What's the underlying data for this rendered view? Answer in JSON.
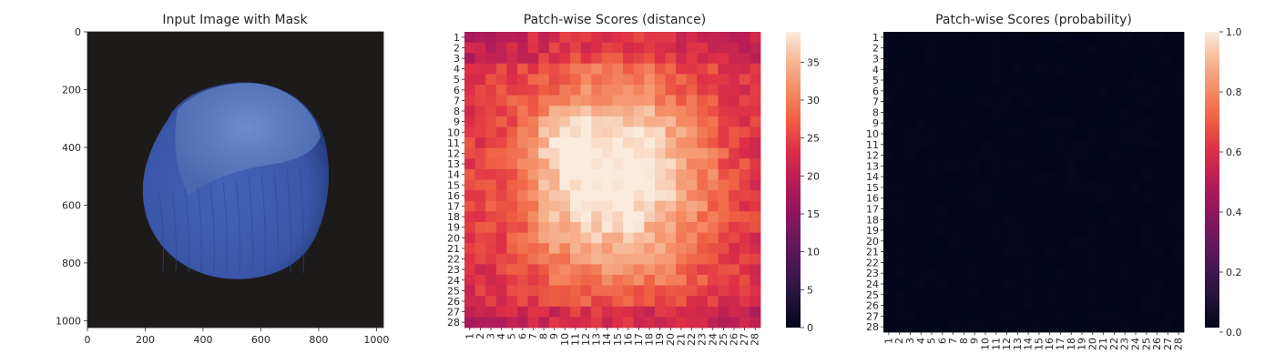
{
  "chart_data": [
    {
      "type": "image",
      "title": "Input Image with Mask",
      "x_ticks": [
        "0",
        "200",
        "400",
        "600",
        "800",
        "1000"
      ],
      "y_ticks": [
        "0",
        "200",
        "400",
        "600",
        "800",
        "1000"
      ],
      "x_tick_values": [
        0,
        200,
        400,
        600,
        800,
        1000
      ],
      "y_tick_values": [
        0,
        200,
        400,
        600,
        800,
        1000
      ],
      "xlim": [
        0,
        1024
      ],
      "ylim": [
        0,
        1024
      ],
      "colors": {
        "background": "#1d1a1a",
        "nut_body": "#3a56a8",
        "nut_cap": "#5a7ac0",
        "nut_shadow": "#2a3f80"
      }
    },
    {
      "type": "heatmap",
      "title": "Patch-wise Scores (distance)",
      "x_labels": [
        "1",
        "2",
        "3",
        "4",
        "5",
        "6",
        "7",
        "8",
        "9",
        "10",
        "11",
        "12",
        "13",
        "14",
        "15",
        "16",
        "17",
        "18",
        "19",
        "20",
        "21",
        "22",
        "23",
        "24",
        "25",
        "26",
        "27",
        "28"
      ],
      "y_labels": [
        "1",
        "2",
        "3",
        "4",
        "5",
        "6",
        "7",
        "8",
        "9",
        "10",
        "11",
        "12",
        "13",
        "14",
        "15",
        "16",
        "17",
        "18",
        "19",
        "20",
        "21",
        "22",
        "23",
        "24",
        "25",
        "26",
        "27",
        "28"
      ],
      "grid_size": 28,
      "vmin": 0,
      "vmax": 39,
      "colorbar_ticks": [
        "0",
        "5",
        "10",
        "15",
        "20",
        "25",
        "30",
        "35"
      ],
      "colorbar_tick_values": [
        0,
        5,
        10,
        15,
        20,
        25,
        30,
        35
      ],
      "colormap": "rocket",
      "field": {
        "background": 22,
        "center_x": 14.5,
        "center_y": 14.0,
        "sigma_x": 7.0,
        "sigma_y": 8.0,
        "amplitude": 15,
        "peak_row": 11,
        "peak_col": 10
      }
    },
    {
      "type": "heatmap",
      "title": "Patch-wise Scores (probability)",
      "x_labels": [
        "1",
        "2",
        "3",
        "4",
        "5",
        "6",
        "7",
        "8",
        "9",
        "10",
        "11",
        "12",
        "13",
        "14",
        "15",
        "16",
        "17",
        "18",
        "19",
        "20",
        "21",
        "22",
        "23",
        "24",
        "25",
        "26",
        "27",
        "28"
      ],
      "y_labels": [
        "1",
        "2",
        "3",
        "4",
        "5",
        "6",
        "7",
        "8",
        "9",
        "10",
        "11",
        "12",
        "13",
        "14",
        "15",
        "16",
        "17",
        "18",
        "19",
        "20",
        "21",
        "22",
        "23",
        "24",
        "25",
        "26",
        "27",
        "28"
      ],
      "grid_size": 28,
      "vmin": 0.0,
      "vmax": 1.0,
      "colorbar_ticks": [
        "0.0",
        "0.2",
        "0.4",
        "0.6",
        "0.8",
        "1.0"
      ],
      "colorbar_tick_values": [
        0.0,
        0.2,
        0.4,
        0.6,
        0.8,
        1.0
      ],
      "colormap": "rocket",
      "field": {
        "background": 0.0,
        "max_value": 0.01
      }
    }
  ]
}
